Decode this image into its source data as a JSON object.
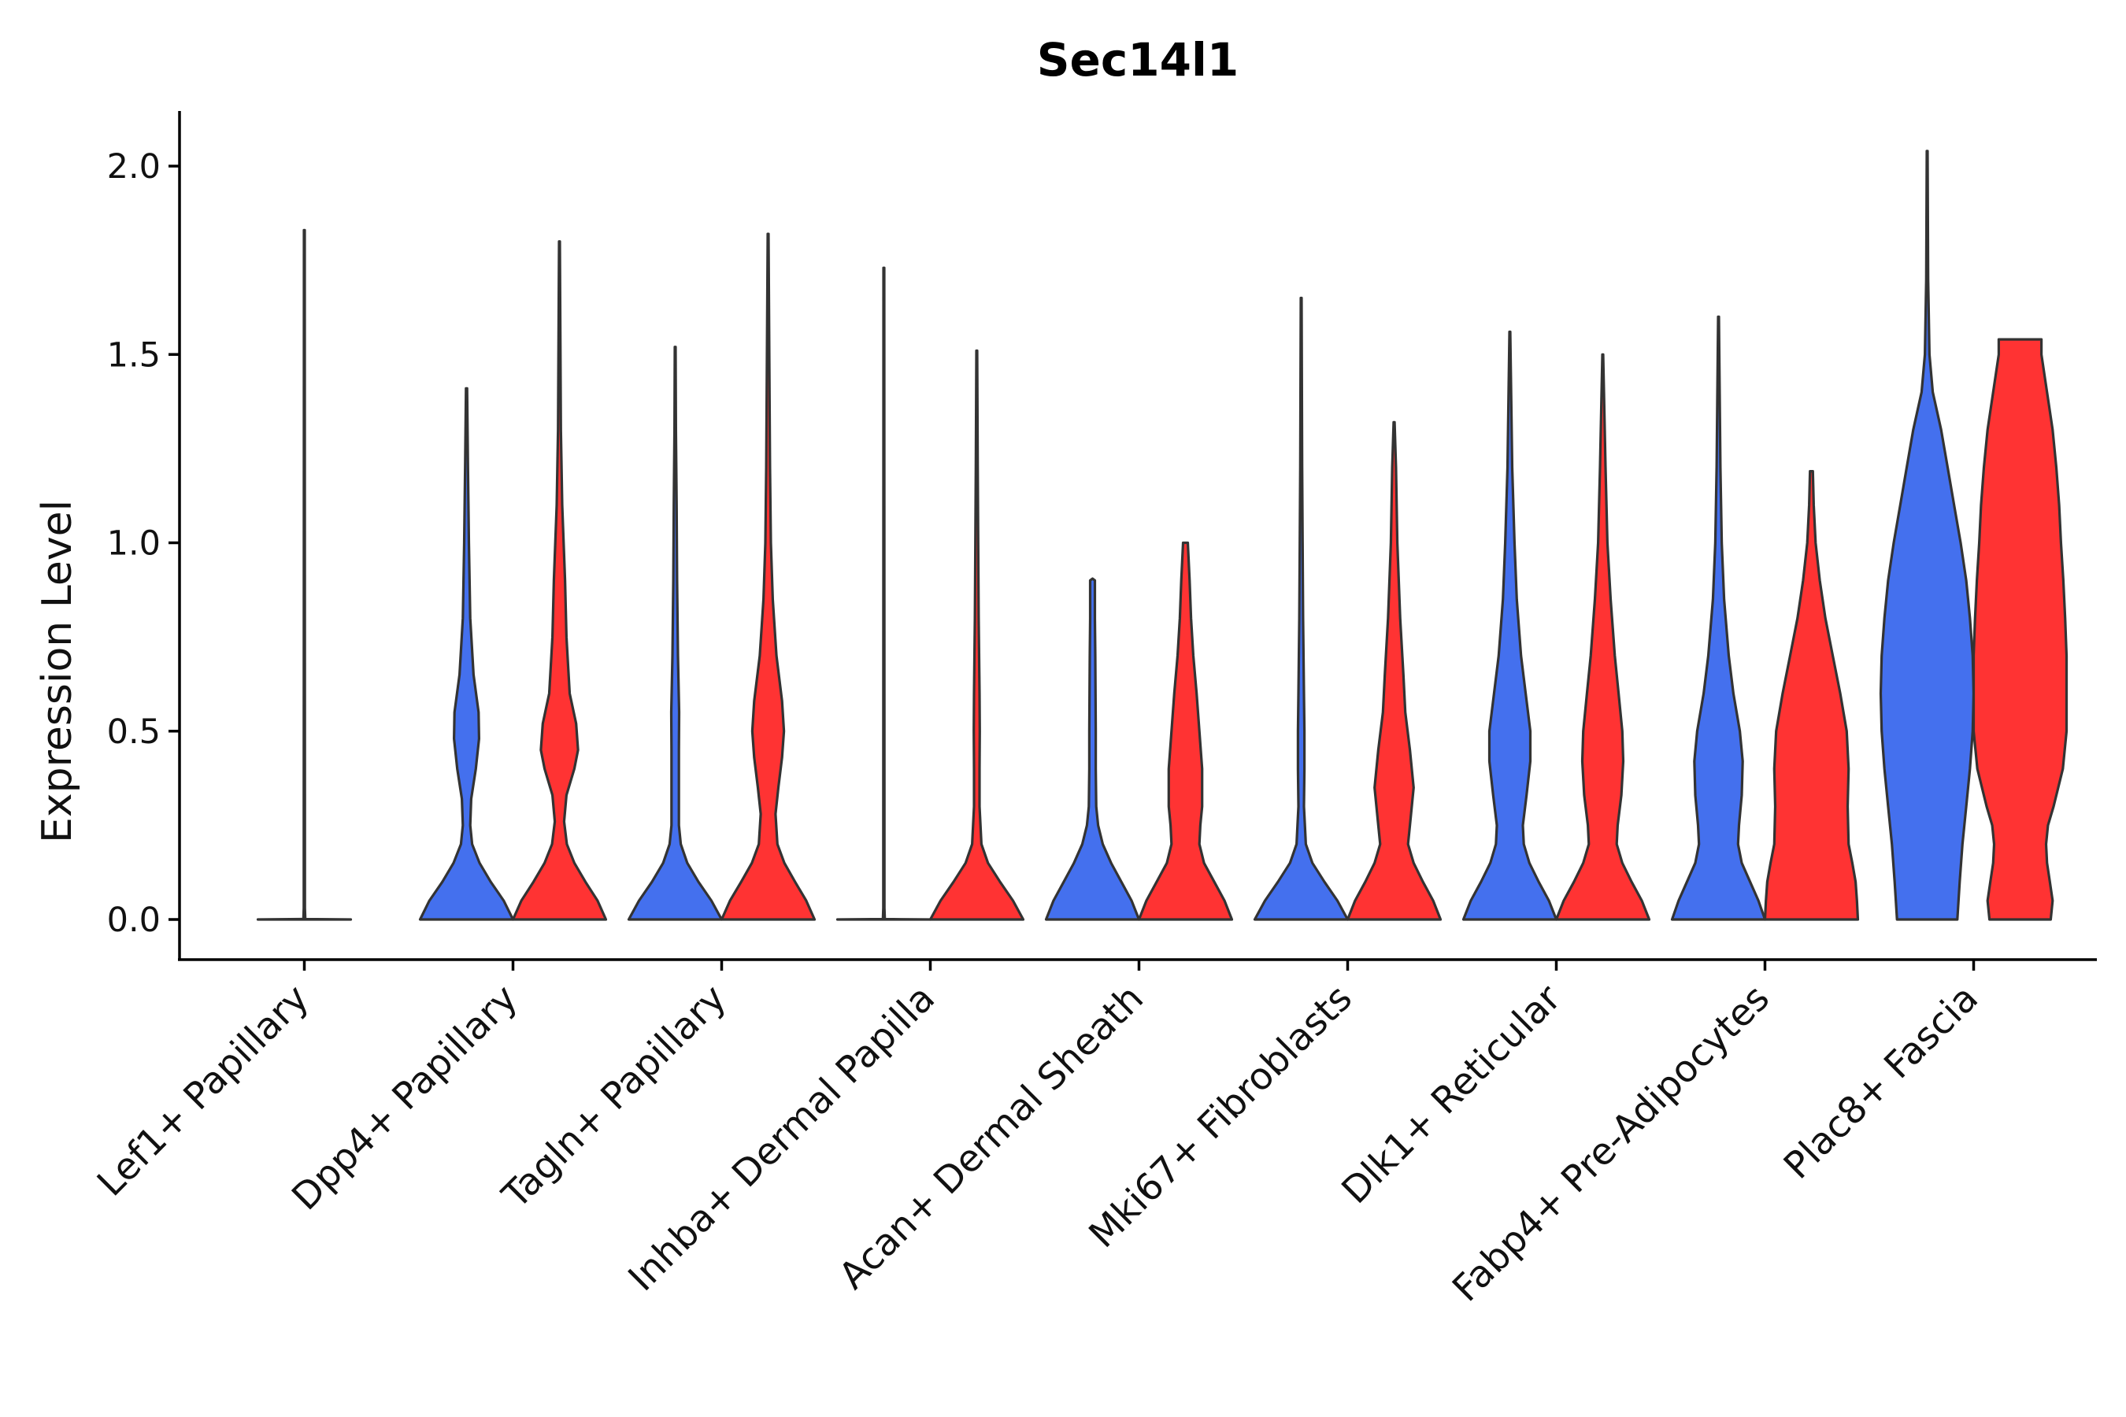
{
  "chart_data": {
    "type": "violin",
    "title": "Sec14l1",
    "xlabel": "",
    "ylabel": "Expression Level",
    "ylim": [
      -0.1,
      2.15
    ],
    "yticks": [
      0.0,
      0.5,
      1.0,
      1.5,
      2.0
    ],
    "ytick_labels": [
      "0.0",
      "0.5",
      "1.0",
      "1.5",
      "2.0"
    ],
    "grid": false,
    "legend": "none",
    "split_colors": [
      "#4470EE",
      "#FF3333"
    ],
    "categories": [
      "Lef1+ Papillary",
      "Dpp4+ Papillary",
      "Tagln+ Papillary",
      "Inhba+ Dermal Papilla",
      "Acan+ Dermal Sheath",
      "Mki67+ Fibroblasts",
      "Dlk1+ Reticular",
      "Fabp4+ Pre-Adipocytes",
      "Plac8+ Fascia"
    ],
    "violins": [
      {
        "category": "Lef1+ Papillary",
        "group": 1,
        "ymax": 1.83,
        "shape": [
          [
            0.0,
            1.0
          ],
          [
            0.001,
            0.02
          ],
          [
            0.03,
            0.012
          ],
          [
            0.3,
            0.012
          ],
          [
            1.83,
            0.008
          ]
        ]
      },
      {
        "category": "Dpp4+ Papillary",
        "group": 1,
        "ymax": 1.41,
        "shape": [
          [
            0.0,
            1.0
          ],
          [
            0.05,
            0.8
          ],
          [
            0.1,
            0.52
          ],
          [
            0.15,
            0.28
          ],
          [
            0.2,
            0.12
          ],
          [
            0.25,
            0.08
          ],
          [
            0.32,
            0.1
          ],
          [
            0.4,
            0.2
          ],
          [
            0.48,
            0.27
          ],
          [
            0.55,
            0.26
          ],
          [
            0.65,
            0.15
          ],
          [
            0.8,
            0.08
          ],
          [
            1.0,
            0.05
          ],
          [
            1.2,
            0.03
          ],
          [
            1.41,
            0.012
          ]
        ]
      },
      {
        "category": "Dpp4+ Papillary",
        "group": 2,
        "ymax": 1.8,
        "shape": [
          [
            0.0,
            1.0
          ],
          [
            0.05,
            0.82
          ],
          [
            0.1,
            0.56
          ],
          [
            0.15,
            0.32
          ],
          [
            0.2,
            0.16
          ],
          [
            0.26,
            0.1
          ],
          [
            0.33,
            0.15
          ],
          [
            0.4,
            0.32
          ],
          [
            0.45,
            0.4
          ],
          [
            0.52,
            0.36
          ],
          [
            0.6,
            0.22
          ],
          [
            0.75,
            0.15
          ],
          [
            0.9,
            0.12
          ],
          [
            1.1,
            0.06
          ],
          [
            1.3,
            0.03
          ],
          [
            1.8,
            0.008
          ]
        ]
      },
      {
        "category": "Tagln+ Papillary",
        "group": 1,
        "ymax": 1.52,
        "shape": [
          [
            0.0,
            1.0
          ],
          [
            0.05,
            0.78
          ],
          [
            0.1,
            0.5
          ],
          [
            0.15,
            0.26
          ],
          [
            0.2,
            0.12
          ],
          [
            0.25,
            0.08
          ],
          [
            0.35,
            0.08
          ],
          [
            0.45,
            0.08
          ],
          [
            0.55,
            0.085
          ],
          [
            0.7,
            0.06
          ],
          [
            0.9,
            0.04
          ],
          [
            1.1,
            0.03
          ],
          [
            1.3,
            0.015
          ],
          [
            1.52,
            0.008
          ]
        ]
      },
      {
        "category": "Tagln+ Papillary",
        "group": 2,
        "ymax": 1.82,
        "shape": [
          [
            0.0,
            1.0
          ],
          [
            0.05,
            0.82
          ],
          [
            0.1,
            0.58
          ],
          [
            0.15,
            0.35
          ],
          [
            0.2,
            0.2
          ],
          [
            0.28,
            0.16
          ],
          [
            0.35,
            0.22
          ],
          [
            0.43,
            0.3
          ],
          [
            0.5,
            0.34
          ],
          [
            0.58,
            0.3
          ],
          [
            0.7,
            0.18
          ],
          [
            0.85,
            0.1
          ],
          [
            1.0,
            0.06
          ],
          [
            1.2,
            0.04
          ],
          [
            1.82,
            0.008
          ]
        ]
      },
      {
        "category": "Inhba+ Dermal Papilla",
        "group": 1,
        "ymax": 1.73,
        "shape": [
          [
            0.0,
            1.0
          ],
          [
            0.001,
            0.02
          ],
          [
            0.03,
            0.012
          ],
          [
            0.3,
            0.012
          ],
          [
            1.73,
            0.008
          ]
        ]
      },
      {
        "category": "Inhba+ Dermal Papilla",
        "group": 2,
        "ymax": 1.51,
        "shape": [
          [
            0.0,
            1.0
          ],
          [
            0.05,
            0.78
          ],
          [
            0.1,
            0.5
          ],
          [
            0.15,
            0.24
          ],
          [
            0.2,
            0.1
          ],
          [
            0.3,
            0.06
          ],
          [
            0.4,
            0.06
          ],
          [
            0.5,
            0.065
          ],
          [
            0.6,
            0.06
          ],
          [
            0.8,
            0.04
          ],
          [
            1.0,
            0.03
          ],
          [
            1.2,
            0.02
          ],
          [
            1.51,
            0.008
          ]
        ]
      },
      {
        "category": "Acan+ Dermal Sheath",
        "group": 1,
        "ymax": 0.905,
        "shape": [
          [
            0.0,
            1.0
          ],
          [
            0.05,
            0.84
          ],
          [
            0.1,
            0.62
          ],
          [
            0.15,
            0.4
          ],
          [
            0.2,
            0.22
          ],
          [
            0.25,
            0.12
          ],
          [
            0.3,
            0.08
          ],
          [
            0.4,
            0.07
          ],
          [
            0.5,
            0.07
          ],
          [
            0.6,
            0.065
          ],
          [
            0.7,
            0.06
          ],
          [
            0.8,
            0.05
          ],
          [
            0.9,
            0.05
          ],
          [
            0.905,
            0.0
          ]
        ]
      },
      {
        "category": "Acan+ Dermal Sheath",
        "group": 2,
        "ymax": 1.0,
        "shape": [
          [
            0.0,
            1.0
          ],
          [
            0.05,
            0.84
          ],
          [
            0.1,
            0.62
          ],
          [
            0.15,
            0.4
          ],
          [
            0.2,
            0.3
          ],
          [
            0.25,
            0.32
          ],
          [
            0.3,
            0.36
          ],
          [
            0.4,
            0.36
          ],
          [
            0.5,
            0.3
          ],
          [
            0.6,
            0.24
          ],
          [
            0.7,
            0.17
          ],
          [
            0.8,
            0.12
          ],
          [
            0.9,
            0.09
          ],
          [
            1.0,
            0.05
          ]
        ]
      },
      {
        "category": "Mki67+ Fibroblasts",
        "group": 1,
        "ymax": 1.65,
        "shape": [
          [
            0.0,
            1.0
          ],
          [
            0.05,
            0.78
          ],
          [
            0.1,
            0.5
          ],
          [
            0.15,
            0.24
          ],
          [
            0.2,
            0.1
          ],
          [
            0.3,
            0.06
          ],
          [
            0.4,
            0.07
          ],
          [
            0.5,
            0.07
          ],
          [
            0.6,
            0.06
          ],
          [
            0.8,
            0.04
          ],
          [
            1.0,
            0.03
          ],
          [
            1.2,
            0.02
          ],
          [
            1.65,
            0.008
          ]
        ]
      },
      {
        "category": "Mki67+ Fibroblasts",
        "group": 2,
        "ymax": 1.32,
        "shape": [
          [
            0.0,
            1.0
          ],
          [
            0.05,
            0.84
          ],
          [
            0.1,
            0.62
          ],
          [
            0.15,
            0.42
          ],
          [
            0.2,
            0.3
          ],
          [
            0.25,
            0.34
          ],
          [
            0.35,
            0.42
          ],
          [
            0.45,
            0.34
          ],
          [
            0.55,
            0.24
          ],
          [
            0.65,
            0.2
          ],
          [
            0.8,
            0.13
          ],
          [
            1.0,
            0.07
          ],
          [
            1.2,
            0.04
          ],
          [
            1.32,
            0.01
          ]
        ]
      },
      {
        "category": "Dlk1+ Reticular",
        "group": 1,
        "ymax": 1.56,
        "shape": [
          [
            0.0,
            1.0
          ],
          [
            0.05,
            0.84
          ],
          [
            0.1,
            0.62
          ],
          [
            0.15,
            0.42
          ],
          [
            0.2,
            0.3
          ],
          [
            0.25,
            0.28
          ],
          [
            0.33,
            0.36
          ],
          [
            0.42,
            0.44
          ],
          [
            0.5,
            0.44
          ],
          [
            0.6,
            0.34
          ],
          [
            0.7,
            0.24
          ],
          [
            0.85,
            0.15
          ],
          [
            1.0,
            0.1
          ],
          [
            1.2,
            0.05
          ],
          [
            1.56,
            0.008
          ]
        ]
      },
      {
        "category": "Dlk1+ Reticular",
        "group": 2,
        "ymax": 1.5,
        "shape": [
          [
            0.0,
            1.0
          ],
          [
            0.05,
            0.84
          ],
          [
            0.1,
            0.62
          ],
          [
            0.15,
            0.42
          ],
          [
            0.2,
            0.3
          ],
          [
            0.25,
            0.32
          ],
          [
            0.33,
            0.4
          ],
          [
            0.42,
            0.44
          ],
          [
            0.5,
            0.42
          ],
          [
            0.6,
            0.34
          ],
          [
            0.7,
            0.26
          ],
          [
            0.85,
            0.17
          ],
          [
            1.0,
            0.1
          ],
          [
            1.2,
            0.06
          ],
          [
            1.5,
            0.008
          ]
        ]
      },
      {
        "category": "Fabp4+ Pre-Adipocytes",
        "group": 1,
        "ymax": 1.6,
        "shape": [
          [
            0.0,
            1.0
          ],
          [
            0.05,
            0.86
          ],
          [
            0.1,
            0.68
          ],
          [
            0.15,
            0.5
          ],
          [
            0.2,
            0.42
          ],
          [
            0.25,
            0.44
          ],
          [
            0.33,
            0.5
          ],
          [
            0.42,
            0.52
          ],
          [
            0.5,
            0.46
          ],
          [
            0.6,
            0.32
          ],
          [
            0.7,
            0.22
          ],
          [
            0.85,
            0.12
          ],
          [
            1.0,
            0.07
          ],
          [
            1.2,
            0.04
          ],
          [
            1.6,
            0.008
          ]
        ]
      },
      {
        "category": "Fabp4+ Pre-Adipocytes",
        "group": 2,
        "ymax": 1.19,
        "shape": [
          [
            0.0,
            1.0
          ],
          [
            0.05,
            0.98
          ],
          [
            0.1,
            0.95
          ],
          [
            0.15,
            0.88
          ],
          [
            0.2,
            0.8
          ],
          [
            0.3,
            0.78
          ],
          [
            0.4,
            0.8
          ],
          [
            0.5,
            0.76
          ],
          [
            0.6,
            0.62
          ],
          [
            0.7,
            0.46
          ],
          [
            0.8,
            0.3
          ],
          [
            0.9,
            0.18
          ],
          [
            1.0,
            0.09
          ],
          [
            1.1,
            0.05
          ],
          [
            1.19,
            0.03
          ]
        ]
      },
      {
        "category": "Plac8+ Fascia",
        "group": 1,
        "ymax": 2.04,
        "shape": [
          [
            0.0,
            0.65
          ],
          [
            0.1,
            0.7
          ],
          [
            0.2,
            0.76
          ],
          [
            0.3,
            0.84
          ],
          [
            0.4,
            0.92
          ],
          [
            0.5,
            0.98
          ],
          [
            0.6,
            1.0
          ],
          [
            0.7,
            0.98
          ],
          [
            0.8,
            0.92
          ],
          [
            0.9,
            0.84
          ],
          [
            1.0,
            0.72
          ],
          [
            1.1,
            0.58
          ],
          [
            1.2,
            0.44
          ],
          [
            1.3,
            0.3
          ],
          [
            1.4,
            0.12
          ],
          [
            1.5,
            0.05
          ],
          [
            1.7,
            0.02
          ],
          [
            2.04,
            0.008
          ]
        ]
      },
      {
        "category": "Plac8+ Fascia",
        "group": 2,
        "ymax": 1.54,
        "shape": [
          [
            0.0,
            0.66
          ],
          [
            0.05,
            0.7
          ],
          [
            0.1,
            0.64
          ],
          [
            0.15,
            0.58
          ],
          [
            0.2,
            0.56
          ],
          [
            0.25,
            0.6
          ],
          [
            0.3,
            0.72
          ],
          [
            0.4,
            0.92
          ],
          [
            0.5,
            1.0
          ],
          [
            0.6,
            1.0
          ],
          [
            0.7,
            1.0
          ],
          [
            0.8,
            0.97
          ],
          [
            0.9,
            0.93
          ],
          [
            1.0,
            0.88
          ],
          [
            1.1,
            0.84
          ],
          [
            1.2,
            0.78
          ],
          [
            1.3,
            0.7
          ],
          [
            1.4,
            0.58
          ],
          [
            1.5,
            0.46
          ],
          [
            1.54,
            0.46
          ]
        ]
      }
    ]
  }
}
